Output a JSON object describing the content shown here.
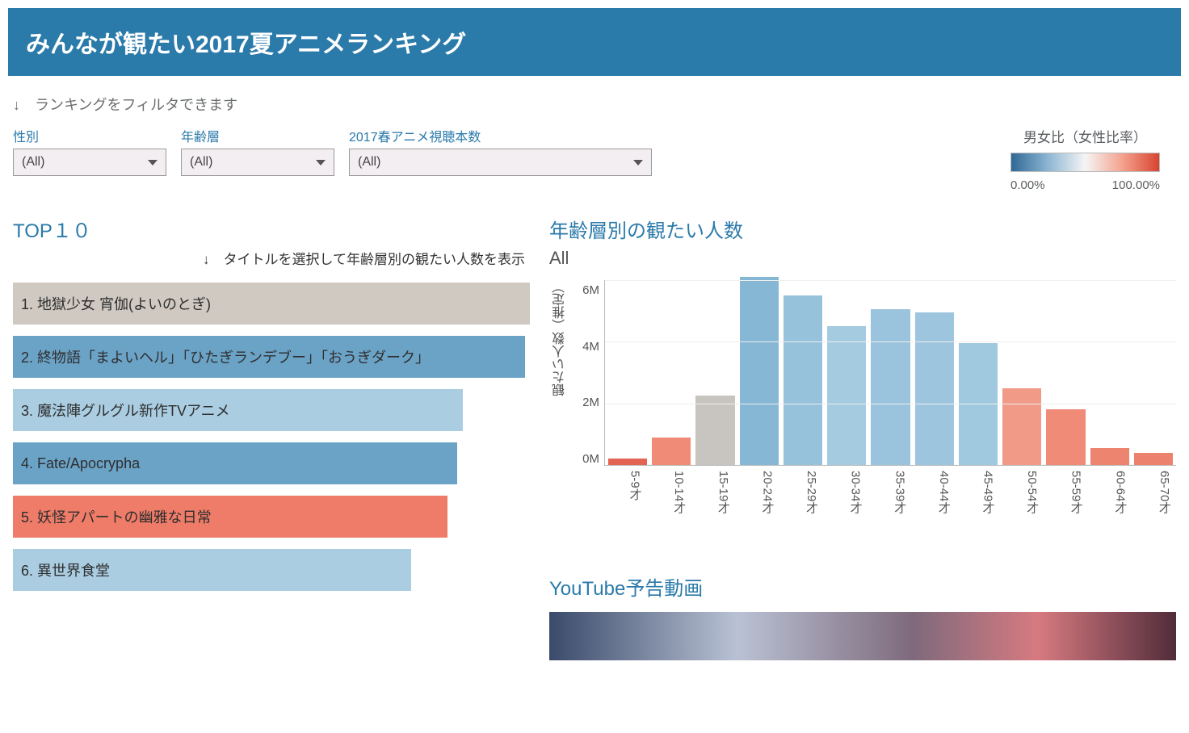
{
  "banner": {
    "title": "みんなが観たい2017夏アニメランキング"
  },
  "filter_hint": "↓　ランキングをフィルタできます",
  "filters": [
    {
      "label": "性別",
      "value": "(All)",
      "width": "normal"
    },
    {
      "label": "年齢層",
      "value": "(All)",
      "width": "normal"
    },
    {
      "label": "2017春アニメ視聴本数",
      "value": "(All)",
      "width": "wide"
    }
  ],
  "legend": {
    "title": "男女比（女性比率）",
    "min_label": "0.00%",
    "max_label": "100.00%",
    "gradient_stops": [
      "#2f6896",
      "#8db6d2",
      "#f5f5f5",
      "#f4a28e",
      "#d84430"
    ]
  },
  "top10": {
    "title": "TOP１０",
    "hint": "↓　タイトルを選択して年齢層別の観たい人数を表示",
    "max_value": 100,
    "bars": [
      {
        "label": "1. 地獄少女 宵伽(よいのとぎ)",
        "value": 100,
        "color": "#cfc9c2"
      },
      {
        "label": "2. 終物語「まよいヘル」「ひたぎランデブー」「おうぎダーク」",
        "value": 99,
        "color": "#6ba3c7"
      },
      {
        "label": "3. 魔法陣グルグル新作TVアニメ",
        "value": 87,
        "color": "#aacde2"
      },
      {
        "label": "4. Fate/Apocrypha",
        "value": 86,
        "color": "#6ba3c7"
      },
      {
        "label": "5. 妖怪アパートの幽雅な日常",
        "value": 84,
        "color": "#ef7c68"
      },
      {
        "label": "6. 異世界食堂",
        "value": 77,
        "color": "#aacde2"
      }
    ]
  },
  "age_chart": {
    "title": "年齢層別の観たい人数",
    "subtitle": "All",
    "y_label": "観たい人数（推定）",
    "y_max": 6000000,
    "y_ticks": [
      "6M",
      "4M",
      "2M",
      "0M"
    ],
    "categories": [
      "5-9才",
      "10-14才",
      "15-19才",
      "20-24才",
      "25-29才",
      "30-34才",
      "35-39才",
      "40-44才",
      "45-49才",
      "50-54才",
      "55-59才",
      "60-64才",
      "65-70才"
    ],
    "values": [
      200000,
      900000,
      2250000,
      6100000,
      5500000,
      4500000,
      5050000,
      4950000,
      3950000,
      2500000,
      1800000,
      550000,
      400000
    ],
    "colors": [
      "#e36452",
      "#ef8b77",
      "#c8c4bf",
      "#86b8d6",
      "#96c2dc",
      "#a5cbe1",
      "#9ac4dd",
      "#9dc6de",
      "#a0c8df",
      "#f09a87",
      "#ef8b77",
      "#ed8470",
      "#ec816d"
    ],
    "grid_color": "#eeeeee",
    "axis_color": "#bbbbbb"
  },
  "youtube": {
    "title": "YouTube予告動画"
  }
}
